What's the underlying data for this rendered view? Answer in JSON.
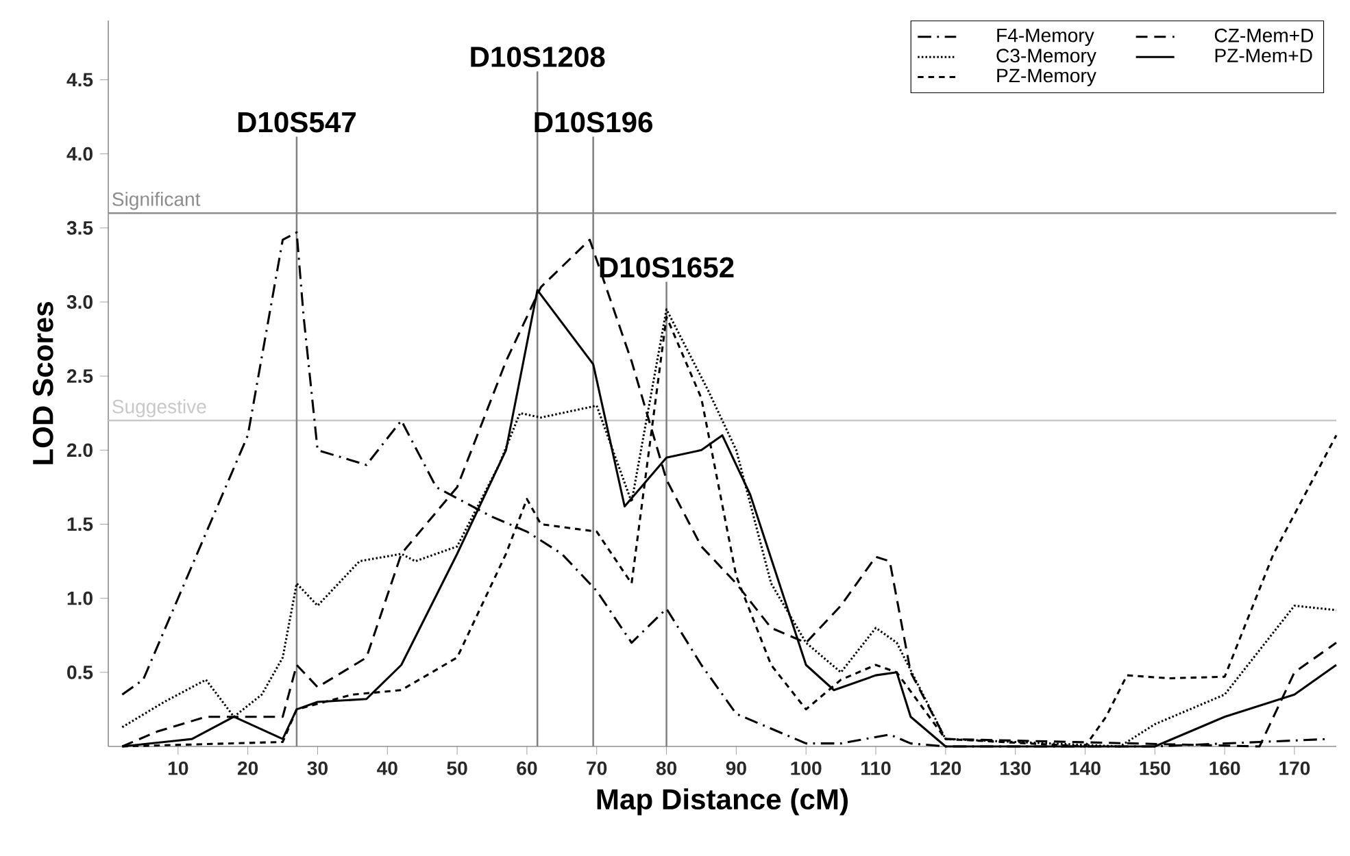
{
  "chart_data": {
    "type": "line",
    "xlabel": "Map Distance (cM)",
    "ylabel": "LOD Scores",
    "xlim": [
      0,
      176
    ],
    "ylim": [
      0,
      4.9
    ],
    "xticks": [
      10,
      20,
      30,
      40,
      50,
      60,
      70,
      80,
      90,
      100,
      110,
      120,
      130,
      140,
      150,
      160,
      170
    ],
    "yticks": [
      {
        "value": 0.5,
        "label": "0.5"
      },
      {
        "value": 1,
        "label": "1.0"
      },
      {
        "value": 1.5,
        "label": "1.5"
      },
      {
        "value": 2,
        "label": "2.0"
      },
      {
        "value": 2.5,
        "label": "2.5"
      },
      {
        "value": 3,
        "label": "3.0"
      },
      {
        "value": 3.5,
        "label": "3.5"
      },
      {
        "value": 4,
        "label": "4.0"
      },
      {
        "value": 4.5,
        "label": "4.5"
      }
    ],
    "legend": "top right",
    "grid": false,
    "series": [
      {
        "name": "F4-Memory",
        "color": "#000000",
        "line_style": "dashdot",
        "x": [
          2,
          5,
          20,
          25,
          27,
          28,
          30,
          37,
          42,
          47,
          55,
          60,
          65,
          70,
          75,
          80,
          85,
          90,
          95,
          100,
          105,
          112,
          115,
          120,
          150,
          175
        ],
        "values": [
          0.35,
          0.45,
          2.1,
          3.42,
          3.47,
          2.9,
          2.0,
          1.9,
          2.2,
          1.75,
          1.55,
          1.45,
          1.3,
          1.05,
          0.7,
          0.93,
          0.55,
          0.22,
          0.12,
          0.02,
          0.02,
          0.08,
          0.02,
          0,
          0,
          0.05
        ]
      },
      {
        "name": "C3-Memory",
        "color": "#000000",
        "line_style": "dotted",
        "x": [
          2,
          8,
          14,
          18,
          22,
          25,
          27,
          30,
          36,
          42,
          44,
          50,
          56,
          59,
          62,
          70,
          75,
          80,
          86,
          90,
          95,
          100,
          105,
          110,
          113,
          120,
          145,
          150,
          160,
          170,
          176
        ],
        "values": [
          0.13,
          0.3,
          0.45,
          0.2,
          0.35,
          0.6,
          1.1,
          0.95,
          1.25,
          1.3,
          1.25,
          1.35,
          1.9,
          2.25,
          2.22,
          2.3,
          1.65,
          2.95,
          2.4,
          2.0,
          1.1,
          0.7,
          0.5,
          0.8,
          0.7,
          0.05,
          0,
          0.15,
          0.35,
          0.95,
          0.92
        ]
      },
      {
        "name": "PZ-Memory",
        "color": "#000000",
        "line_style": "dashed",
        "x": [
          2,
          25,
          27,
          35,
          42,
          50,
          57,
          60,
          62,
          70,
          75,
          80,
          85,
          90,
          95,
          100,
          105,
          110,
          113,
          120,
          140,
          143,
          146,
          152,
          160,
          167,
          176
        ],
        "values": [
          0,
          0.03,
          0.25,
          0.35,
          0.38,
          0.6,
          1.3,
          1.67,
          1.5,
          1.45,
          1.1,
          2.9,
          2.35,
          1.15,
          0.55,
          0.25,
          0.45,
          0.55,
          0.5,
          0.05,
          0,
          0.2,
          0.48,
          0.46,
          0.47,
          1.3,
          2.1
        ]
      },
      {
        "name": "CZ-Mem+D",
        "color": "#000000",
        "line_style": "long dashed",
        "x": [
          2,
          7,
          14,
          20,
          25,
          27,
          30,
          37,
          42,
          50,
          57,
          62,
          69,
          75,
          80,
          85,
          90,
          95,
          100,
          105,
          110,
          112,
          115,
          120,
          165,
          170,
          176
        ],
        "values": [
          0,
          0.1,
          0.2,
          0.2,
          0.2,
          0.55,
          0.4,
          0.6,
          1.3,
          1.75,
          2.6,
          3.1,
          3.42,
          2.6,
          1.8,
          1.35,
          1.1,
          0.8,
          0.7,
          0.95,
          1.28,
          1.25,
          0.5,
          0.05,
          0,
          0.5,
          0.7
        ]
      },
      {
        "name": "PZ-Mem+D",
        "color": "#000000",
        "line_style": "solid",
        "x": [
          2,
          12,
          18,
          25,
          27,
          30,
          37,
          42,
          50,
          57,
          61.5,
          69.5,
          74,
          80,
          85,
          88,
          92,
          100,
          104,
          110,
          113,
          115,
          120,
          150,
          160,
          170,
          176
        ],
        "values": [
          0,
          0.05,
          0.2,
          0.05,
          0.25,
          0.3,
          0.32,
          0.55,
          1.3,
          2.0,
          3.08,
          2.58,
          1.62,
          1.95,
          2.0,
          2.1,
          1.7,
          0.55,
          0.38,
          0.48,
          0.5,
          0.2,
          0,
          0,
          0.2,
          0.35,
          0.55
        ]
      }
    ],
    "ref_lines": [
      {
        "axis": "y",
        "value": 3.6,
        "label": "Significant",
        "color": "#8c8c8c"
      },
      {
        "axis": "y",
        "value": 2.2,
        "label": "Suggestive",
        "color": "#c8c8c8"
      },
      {
        "axis": "x",
        "value": 27,
        "label": "D10S547",
        "color": "#808080"
      },
      {
        "axis": "x",
        "value": 61.5,
        "label": "D10S1208",
        "color": "#808080"
      },
      {
        "axis": "x",
        "value": 69.5,
        "label": "D10S196",
        "color": "#808080"
      },
      {
        "axis": "x",
        "value": 80,
        "label": "D10S1652",
        "color": "#808080"
      }
    ]
  }
}
